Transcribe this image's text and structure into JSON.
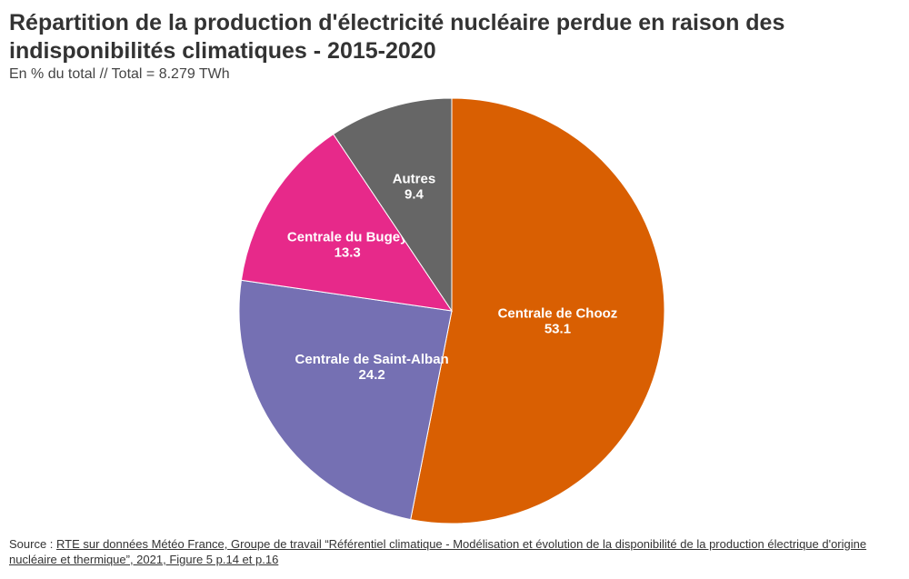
{
  "title": "Répartition de la production d'électricité nucléaire perdue en raison des indisponibilités climatiques - 2015-2020",
  "subtitle": "En % du total // Total = 8.279 TWh",
  "source": {
    "prefix": "Source : ",
    "link_text": "RTE sur données Météo France, Groupe de travail “Référentiel climatique - Modélisation et évolution de la disponibilité de la production électrique d'origine nucléaire et thermique”, 2021, Figure 5 p.14 et p.16"
  },
  "chart_data": {
    "type": "pie",
    "title": "Répartition de la production d'électricité nucléaire perdue en raison des indisponibilités climatiques - 2015-2020",
    "subtitle": "En % du total // Total = 8.279 TWh",
    "unit": "%",
    "total_label": "8.279 TWh",
    "start": "12 o'clock, clockwise",
    "slices": [
      {
        "name": "Centrale de Chooz",
        "value": 53.1,
        "color": "#d95f02"
      },
      {
        "name": "Centrale de Saint-Alban",
        "value": 24.2,
        "color": "#7570b3"
      },
      {
        "name": "Centrale du Bugey",
        "value": 13.3,
        "color": "#e7298a"
      },
      {
        "name": "Autres",
        "value": 9.4,
        "color": "#666666"
      }
    ]
  }
}
